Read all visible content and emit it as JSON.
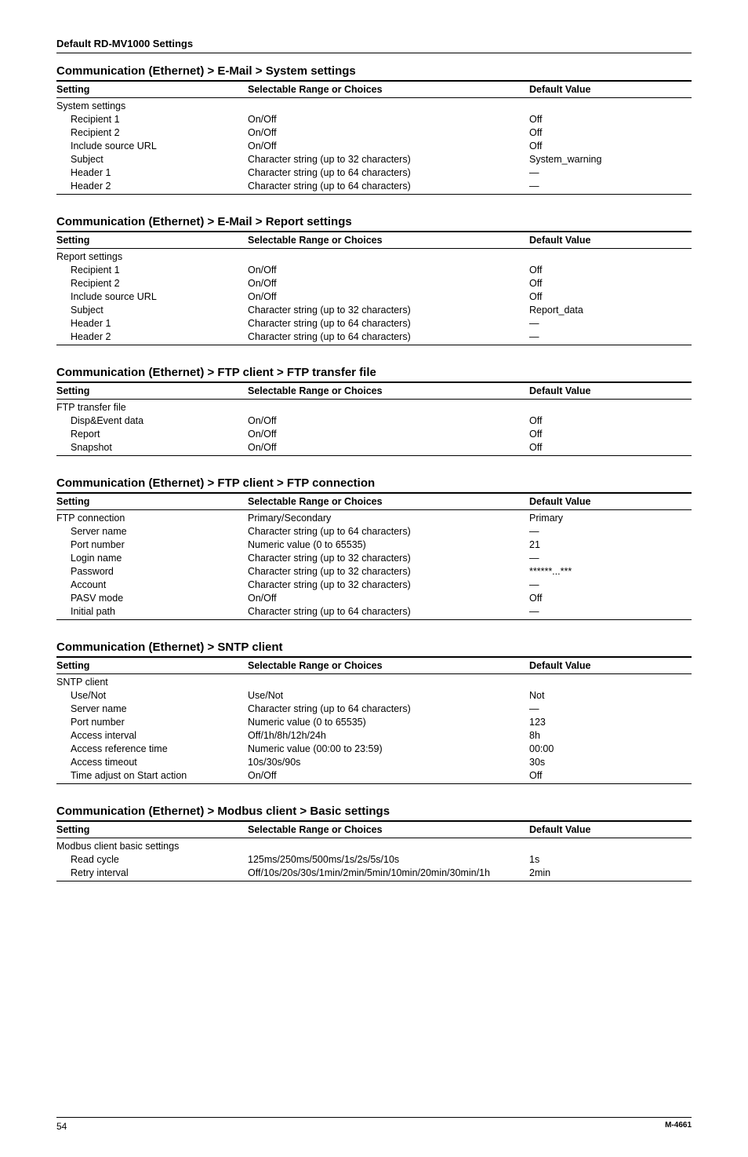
{
  "page_header": "Default RD-MV1000 Settings",
  "col_headers": {
    "setting": "Setting",
    "range": "Selectable Range or Choices",
    "default": "Default Value"
  },
  "sections": [
    {
      "title": "Communication (Ethernet) > E-Mail > System settings",
      "group": "System settings",
      "rows": [
        {
          "setting": "Recipient 1",
          "range": "On/Off",
          "default": "Off"
        },
        {
          "setting": "Recipient 2",
          "range": "On/Off",
          "default": "Off"
        },
        {
          "setting": "Include source URL",
          "range": "On/Off",
          "default": "Off"
        },
        {
          "setting": "Subject",
          "range": "Character string (up to 32 characters)",
          "default": "System_warning"
        },
        {
          "setting": "Header 1",
          "range": "Character string (up to 64 characters)",
          "default": "—"
        },
        {
          "setting": "Header 2",
          "range": "Character string (up to 64 characters)",
          "default": "—"
        }
      ]
    },
    {
      "title": "Communication (Ethernet) > E-Mail > Report settings",
      "group": "Report settings",
      "rows": [
        {
          "setting": "Recipient 1",
          "range": "On/Off",
          "default": "Off"
        },
        {
          "setting": "Recipient 2",
          "range": "On/Off",
          "default": "Off"
        },
        {
          "setting": "Include source URL",
          "range": "On/Off",
          "default": "Off"
        },
        {
          "setting": "Subject",
          "range": "Character string (up to 32 characters)",
          "default": "Report_data"
        },
        {
          "setting": "Header 1",
          "range": "Character string (up to 64 characters)",
          "default": "—"
        },
        {
          "setting": "Header 2",
          "range": "Character string (up to 64 characters)",
          "default": "—"
        }
      ]
    },
    {
      "title": "Communication (Ethernet) > FTP client > FTP transfer file",
      "group": "FTP transfer file",
      "rows": [
        {
          "setting": "Disp&Event data",
          "range": "On/Off",
          "default": "Off"
        },
        {
          "setting": "Report",
          "range": "On/Off",
          "default": "Off"
        },
        {
          "setting": "Snapshot",
          "range": "On/Off",
          "default": "Off"
        }
      ]
    },
    {
      "title": "Communication (Ethernet) > FTP client > FTP connection",
      "group": "FTP connection",
      "group_range": "Primary/Secondary",
      "group_default": "Primary",
      "rows": [
        {
          "setting": "Server name",
          "range": "Character string (up to 64 characters)",
          "default": "—"
        },
        {
          "setting": "Port number",
          "range": "Numeric value (0 to 65535)",
          "default": "21"
        },
        {
          "setting": "Login name",
          "range": "Character string (up to 32 characters)",
          "default": "—"
        },
        {
          "setting": "Password",
          "range": "Character string (up to 32 characters)",
          "default": "******...***"
        },
        {
          "setting": "Account",
          "range": "Character string (up to 32 characters)",
          "default": "—"
        },
        {
          "setting": "PASV mode",
          "range": "On/Off",
          "default": "Off"
        },
        {
          "setting": "Initial path",
          "range": "Character string (up to 64 characters)",
          "default": "—"
        }
      ]
    },
    {
      "title": "Communication (Ethernet) > SNTP client",
      "group": "SNTP client",
      "rows": [
        {
          "setting": "Use/Not",
          "range": "Use/Not",
          "default": "Not"
        },
        {
          "setting": "Server name",
          "range": "Character string (up to 64 characters)",
          "default": "—"
        },
        {
          "setting": "Port number",
          "range": "Numeric value (0 to 65535)",
          "default": "123"
        },
        {
          "setting": "Access interval",
          "range": "Off/1h/8h/12h/24h",
          "default": "8h"
        },
        {
          "setting": "Access reference time",
          "range": "Numeric value (00:00 to 23:59)",
          "default": "00:00"
        },
        {
          "setting": "Access timeout",
          "range": "10s/30s/90s",
          "default": "30s"
        },
        {
          "setting": "Time adjust on Start action",
          "range": "On/Off",
          "default": "Off"
        }
      ]
    },
    {
      "title": "Communication (Ethernet) > Modbus client > Basic settings",
      "group": "Modbus client basic settings",
      "rows": [
        {
          "setting": "Read cycle",
          "range": "125ms/250ms/500ms/1s/2s/5s/10s",
          "default": "1s"
        },
        {
          "setting": "Retry interval",
          "range": "Off/10s/20s/30s/1min/2min/5min/10min/20min/30min/1h",
          "default": "2min"
        }
      ]
    }
  ],
  "footer": {
    "page_num": "54",
    "doc_code": "M-4661"
  }
}
